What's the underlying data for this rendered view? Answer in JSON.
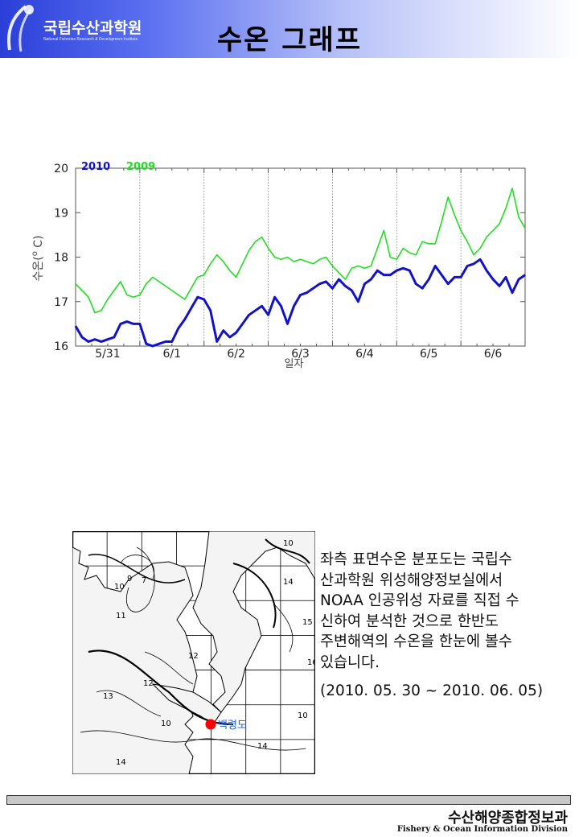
{
  "header": {
    "org_name": "국립수산과학원",
    "org_subtitle": "National Fisheries Research & Development Institute",
    "title": "수온 그래프"
  },
  "chart_data": {
    "type": "line",
    "title": "",
    "xlabel": "일자",
    "ylabel": "수온(°C)",
    "ylabel_parts": [
      "수온(",
      "o",
      " C)"
    ],
    "ylim": [
      16,
      20
    ],
    "xlim": [
      0,
      7
    ],
    "yticks": [
      16,
      17,
      18,
      19,
      20
    ],
    "categories": [
      "5/31",
      "6/1",
      "6/2",
      "6/3",
      "6/4",
      "6/5",
      "6/6"
    ],
    "grid": "vertical-dotted",
    "legend": "top-left",
    "series": [
      {
        "name": "2010",
        "color": "#1212c8",
        "x": [
          0,
          0.1,
          0.2,
          0.3,
          0.4,
          0.5,
          0.6,
          0.7,
          0.8,
          0.9,
          1.0,
          1.1,
          1.2,
          1.3,
          1.4,
          1.5,
          1.6,
          1.7,
          1.8,
          1.9,
          2.0,
          2.1,
          2.2,
          2.3,
          2.4,
          2.5,
          2.6,
          2.7,
          2.8,
          2.9,
          3.0,
          3.1,
          3.2,
          3.3,
          3.4,
          3.5,
          3.6,
          3.7,
          3.8,
          3.9,
          4.0,
          4.1,
          4.2,
          4.3,
          4.4,
          4.5,
          4.6,
          4.7,
          4.8,
          4.9,
          5.0,
          5.1,
          5.2,
          5.3,
          5.4,
          5.5,
          5.6,
          5.7,
          5.8,
          5.9,
          6.0,
          6.1,
          6.2,
          6.3,
          6.4,
          6.5,
          6.6,
          6.7,
          6.8,
          6.9,
          7.0
        ],
        "values": [
          16.45,
          16.2,
          16.1,
          16.15,
          16.1,
          16.15,
          16.2,
          16.5,
          16.55,
          16.5,
          16.5,
          16.05,
          16.0,
          16.05,
          16.1,
          16.1,
          16.4,
          16.6,
          16.85,
          17.1,
          17.05,
          16.8,
          16.1,
          16.35,
          16.2,
          16.3,
          16.5,
          16.7,
          16.8,
          16.9,
          16.7,
          17.1,
          16.9,
          16.5,
          16.9,
          17.15,
          17.2,
          17.3,
          17.4,
          17.45,
          17.3,
          17.5,
          17.35,
          17.25,
          17.0,
          17.4,
          17.5,
          17.7,
          17.6,
          17.6,
          17.7,
          17.75,
          17.7,
          17.4,
          17.3,
          17.5,
          17.8,
          17.6,
          17.4,
          17.55,
          17.55,
          17.8,
          17.85,
          17.95,
          17.7,
          17.5,
          17.35,
          17.55,
          17.2,
          17.5,
          17.6
        ]
      },
      {
        "name": "2009",
        "color": "#22dd22",
        "x": [
          0,
          0.1,
          0.2,
          0.3,
          0.4,
          0.5,
          0.6,
          0.7,
          0.8,
          0.9,
          1.0,
          1.1,
          1.2,
          1.3,
          1.4,
          1.5,
          1.6,
          1.7,
          1.8,
          1.9,
          2.0,
          2.1,
          2.2,
          2.3,
          2.4,
          2.5,
          2.6,
          2.7,
          2.8,
          2.9,
          3.0,
          3.1,
          3.2,
          3.3,
          3.4,
          3.5,
          3.6,
          3.7,
          3.8,
          3.9,
          4.0,
          4.1,
          4.2,
          4.3,
          4.4,
          4.5,
          4.6,
          4.7,
          4.8,
          4.9,
          5.0,
          5.1,
          5.2,
          5.3,
          5.4,
          5.5,
          5.6,
          5.7,
          5.8,
          5.9,
          6.0,
          6.1,
          6.2,
          6.3,
          6.4,
          6.5,
          6.6,
          6.7,
          6.8,
          6.9,
          7.0
        ],
        "values": [
          17.4,
          17.25,
          17.1,
          16.75,
          16.8,
          17.05,
          17.25,
          17.45,
          17.15,
          17.1,
          17.15,
          17.4,
          17.55,
          17.45,
          17.35,
          17.25,
          17.15,
          17.05,
          17.3,
          17.55,
          17.6,
          17.85,
          18.05,
          17.9,
          17.7,
          17.55,
          17.85,
          18.15,
          18.35,
          18.45,
          18.2,
          18.0,
          17.95,
          18.0,
          17.9,
          17.95,
          17.9,
          17.85,
          17.95,
          18.0,
          17.8,
          17.65,
          17.5,
          17.75,
          17.8,
          17.75,
          17.8,
          18.2,
          18.6,
          18.0,
          17.95,
          18.2,
          18.1,
          18.05,
          18.35,
          18.3,
          18.3,
          18.8,
          19.35,
          18.95,
          18.6,
          18.35,
          18.05,
          18.2,
          18.45,
          18.6,
          18.75,
          19.1,
          19.55,
          18.9,
          18.65
        ]
      }
    ]
  },
  "map": {
    "station_label": "백령도",
    "contours": [
      "10",
      "9",
      "7",
      "10",
      "11",
      "12",
      "13",
      "14",
      "10",
      "12",
      "14",
      "15",
      "16",
      "10",
      "14"
    ]
  },
  "description": {
    "lines": [
      "좌측 표면수온 분포도는 국립수",
      "산과학원 위성해양정보실에서",
      "NOAA 인공위성 자료를 직접 수",
      "신하여 분석한 것으로  한반도",
      "주변해역의 수온을 한눈에 볼수",
      "있습니다."
    ],
    "date_range": "(2010. 05. 30 ~ 2010. 06. 05)"
  },
  "footer": {
    "division_kr": "수산해양종합정보과",
    "division_en": "Fishery & Ocean Information Division"
  }
}
